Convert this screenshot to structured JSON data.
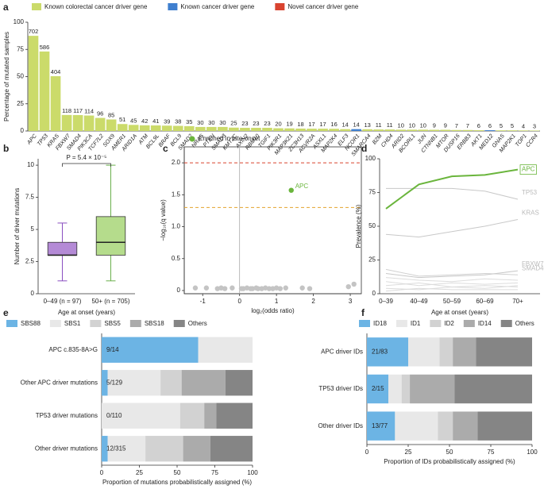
{
  "chart_data": [
    {
      "panel": "a",
      "type": "bar",
      "ylabel": "Percentage of mutated samples",
      "legend": [
        {
          "name": "Known colorectal cancer driver gene",
          "color": "#cbdb6a"
        },
        {
          "name": "Known cancer driver gene",
          "color": "#3f7fcf"
        },
        {
          "name": "Novel cancer driver gene",
          "color": "#d9432f"
        }
      ],
      "categories": [
        "APC",
        "TP53",
        "KRAS",
        "FBXW7",
        "SMAD4",
        "PIK3CA",
        "TCF7L2",
        "SOX9",
        "AMER1",
        "ARID1A",
        "ATM",
        "BCL9L",
        "BRAF",
        "BCL9",
        "SMAD2",
        "NRAS",
        "PTEN",
        "SMAD3",
        "KMT2C",
        "AXIN2",
        "RBM10",
        "TGIF1",
        "PIK3R1",
        "MAP3K21",
        "ZC3H13",
        "ACVR2A",
        "ASXL1",
        "MAP2K4",
        "ELF3",
        "NCOR1",
        "SMARCA4",
        "B2M",
        "CHD4",
        "ARID2",
        "BCORL1",
        "JUN",
        "CTNNB1",
        "MTOR",
        "DUSP16",
        "ERBB3",
        "AKT1",
        "MED12",
        "GNAS",
        "MAP2K1",
        "TOP1",
        "CCR4"
      ],
      "values": [
        87.5,
        73.1,
        50.4,
        14.7,
        14.6,
        14.2,
        12.0,
        10.6,
        6.4,
        5.6,
        5.2,
        5.1,
        4.9,
        4.7,
        4.4,
        3.7,
        3.7,
        3.7,
        3.1,
        2.9,
        2.9,
        2.9,
        2.5,
        2.4,
        2.2,
        2.1,
        2.1,
        2.0,
        1.7,
        1.7,
        1.6,
        1.4,
        1.4,
        1.2,
        1.2,
        1.2,
        1.1,
        1.1,
        0.9,
        0.9,
        0.7,
        0.7,
        0.6,
        0.6,
        0.5,
        0.4
      ],
      "value_labels": [
        "702",
        "586",
        "404",
        "118",
        "117",
        "114",
        "96",
        "85",
        "51",
        "45",
        "42",
        "41",
        "39",
        "38",
        "35",
        "30",
        "30",
        "30",
        "25",
        "23",
        "23",
        "23",
        "20",
        "19",
        "18",
        "17",
        "17",
        "16",
        "14",
        "14",
        "13",
        "11",
        "11",
        "10",
        "10",
        "10",
        "9",
        "9",
        "7",
        "7",
        "6",
        "6",
        "5",
        "5",
        "4",
        "3"
      ],
      "colors": [
        "#cbdb6a",
        "#cbdb6a",
        "#cbdb6a",
        "#cbdb6a",
        "#cbdb6a",
        "#cbdb6a",
        "#cbdb6a",
        "#cbdb6a",
        "#cbdb6a",
        "#cbdb6a",
        "#cbdb6a",
        "#cbdb6a",
        "#cbdb6a",
        "#cbdb6a",
        "#cbdb6a",
        "#cbdb6a",
        "#cbdb6a",
        "#cbdb6a",
        "#cbdb6a",
        "#cbdb6a",
        "#cbdb6a",
        "#cbdb6a",
        "#cbdb6a",
        "#cbdb6a",
        "#cbdb6a",
        "#cbdb6a",
        "#cbdb6a",
        "#cbdb6a",
        "#cbdb6a",
        "#3f7fcf",
        "#cbdb6a",
        "#cbdb6a",
        "#cbdb6a",
        "#cbdb6a",
        "#cbdb6a",
        "#cbdb6a",
        "#cbdb6a",
        "#cbdb6a",
        "#cbdb6a",
        "#cbdb6a",
        "#cbdb6a",
        "#3f7fcf",
        "#cbdb6a",
        "#cbdb6a",
        "#cbdb6a",
        "#cbdb6a"
      ],
      "ylim": [
        0,
        100
      ],
      "yticks": [
        0,
        25,
        50,
        75,
        100
      ]
    },
    {
      "panel": "b",
      "type": "box",
      "ylabel": "Number of driver mutations",
      "xlabel": "Age at onset (years)",
      "categories": [
        "0–49 (n = 97)",
        "50+ (n = 705)"
      ],
      "colors": [
        "#b48ad6",
        "#b5dc8c"
      ],
      "edge_colors": [
        "#8a4fc0",
        "#6ab04c"
      ],
      "boxes": [
        [
          1,
          3,
          3,
          4,
          5.5
        ],
        [
          1,
          3,
          4,
          6,
          10
        ]
      ],
      "annotation": "P = 5.4 × 10⁻⁵",
      "ylim": [
        0,
        10.5
      ],
      "yticks": [
        0,
        2.5,
        5,
        7.5,
        10
      ]
    },
    {
      "panel": "c",
      "type": "scatter",
      "ylabel": "−log₁₀(q value)",
      "xlabel": "log₂(odds ratio)",
      "series": [
        {
          "name": "Enriched in late-onset",
          "color": "#6ab53c",
          "x": [
            1.4
          ],
          "y": [
            1.57
          ],
          "labels": [
            "APC"
          ]
        },
        {
          "color": "#c4c4c4",
          "x": [
            -1.2,
            -0.9,
            -0.6,
            -0.5,
            -0.4,
            -0.2,
            0.05,
            0.1,
            0.2,
            0.3,
            0.35,
            0.45,
            0.5,
            0.6,
            0.7,
            0.8,
            0.9,
            1.0,
            1.1,
            1.25,
            1.7,
            1.9,
            2.95,
            3.1
          ],
          "y": [
            0.04,
            0.04,
            0.03,
            0.04,
            0.03,
            0.04,
            0.03,
            0.03,
            0.04,
            0.03,
            0.03,
            0.04,
            0.03,
            0.03,
            0.04,
            0.03,
            0.03,
            0.04,
            0.03,
            0.04,
            0.04,
            0.03,
            0.06,
            0.1
          ]
        }
      ],
      "hlines": [
        {
          "value": 2,
          "color": "#d9432f"
        },
        {
          "value": 1.3,
          "color": "#e3a32c"
        }
      ],
      "vline": 0,
      "xlim": [
        -1.5,
        3.3
      ],
      "xticks": [
        -1,
        0,
        1,
        2,
        3
      ],
      "ylim": [
        -0.05,
        2.25
      ],
      "yticks": [
        0,
        0.5,
        {
          "value": 1,
          "label": "1.0"
        },
        1.5,
        {
          "value": 2,
          "label": "2.0"
        }
      ]
    },
    {
      "panel": "d",
      "type": "line",
      "ylabel": "Prevalence (%)",
      "xlabel": "Age at onset (years)",
      "categories": [
        "0–39",
        "40–49",
        "50–59",
        "60–69",
        "70+"
      ],
      "series": [
        {
          "color": "#dcdcdc",
          "values": [
            9,
            6,
            8,
            7,
            8
          ]
        },
        {
          "color": "#dcdcdc",
          "values": [
            6,
            8,
            5,
            6,
            5
          ]
        },
        {
          "color": "#dcdcdc",
          "values": [
            4,
            3,
            5,
            4,
            6
          ]
        },
        {
          "color": "#dcdcdc",
          "values": [
            12,
            10,
            9,
            11,
            10
          ]
        },
        {
          "color": "#dcdcdc",
          "values": [
            2,
            4,
            3,
            3,
            3
          ]
        },
        {
          "name": "SMAD4",
          "color": "#d0d0d0",
          "values": [
            18,
            13,
            14,
            15,
            14
          ]
        },
        {
          "name": "FBXW7",
          "color": "#c8c8c8",
          "values": [
            15,
            12,
            13,
            14,
            17
          ]
        },
        {
          "name": "KRAS",
          "color": "#c8c8c8",
          "values": [
            44,
            42,
            46,
            50,
            55
          ]
        },
        {
          "name": "TP53",
          "color": "#c8c8c8",
          "values": [
            78,
            78,
            78,
            76,
            70
          ]
        },
        {
          "name": "APC",
          "color": "#6ab53c",
          "values": [
            63,
            81,
            87,
            88,
            92
          ]
        }
      ],
      "ylim": [
        0,
        100
      ],
      "yticks": [
        0,
        25,
        50,
        75,
        100
      ]
    },
    {
      "panel": "e",
      "type": "stacked_barh",
      "xlabel": "Proportion of mutations probabilistically assigned (%)",
      "categories": [
        "APC c.835-8A>G",
        "Other APC driver mutations",
        "TP53 driver mutations",
        "Other driver mutations"
      ],
      "bar_labels": [
        "9/14",
        "5/129",
        "0/110",
        "12/315"
      ],
      "series": [
        {
          "name": "SBS88",
          "color": "#6cb4e4",
          "values": [
            64,
            4,
            0,
            4
          ]
        },
        {
          "name": "SBS1",
          "color": "#e8e8e8",
          "values": [
            36,
            35,
            52,
            25
          ]
        },
        {
          "name": "SBS5",
          "color": "#d2d2d2",
          "values": [
            0,
            14,
            16,
            25
          ]
        },
        {
          "name": "SBS18",
          "color": "#ababab",
          "values": [
            0,
            29,
            8,
            18
          ]
        },
        {
          "name": "Others",
          "color": "#858585",
          "values": [
            0,
            18,
            24,
            28
          ]
        }
      ],
      "xlim": [
        0,
        100
      ],
      "xticks": [
        0,
        25,
        50,
        75,
        100
      ]
    },
    {
      "panel": "f",
      "type": "stacked_barh",
      "xlabel": "Proportion of IDs probabilistically assigned (%)",
      "categories": [
        "APC driver IDs",
        "TP53 driver IDs",
        "Other driver IDs"
      ],
      "bar_labels": [
        "21/83",
        "2/15",
        "13/77"
      ],
      "series": [
        {
          "name": "ID18",
          "color": "#6cb4e4",
          "values": [
            25,
            13,
            17
          ]
        },
        {
          "name": "ID1",
          "color": "#e8e8e8",
          "values": [
            19,
            8,
            26
          ]
        },
        {
          "name": "ID2",
          "color": "#d2d2d2",
          "values": [
            8,
            5,
            9
          ]
        },
        {
          "name": "ID14",
          "color": "#ababab",
          "values": [
            14,
            27,
            15
          ]
        },
        {
          "name": "Others",
          "color": "#858585",
          "values": [
            34,
            47,
            33
          ]
        }
      ],
      "xlim": [
        0,
        100
      ],
      "xticks": [
        0,
        25,
        50,
        75,
        100
      ]
    }
  ]
}
